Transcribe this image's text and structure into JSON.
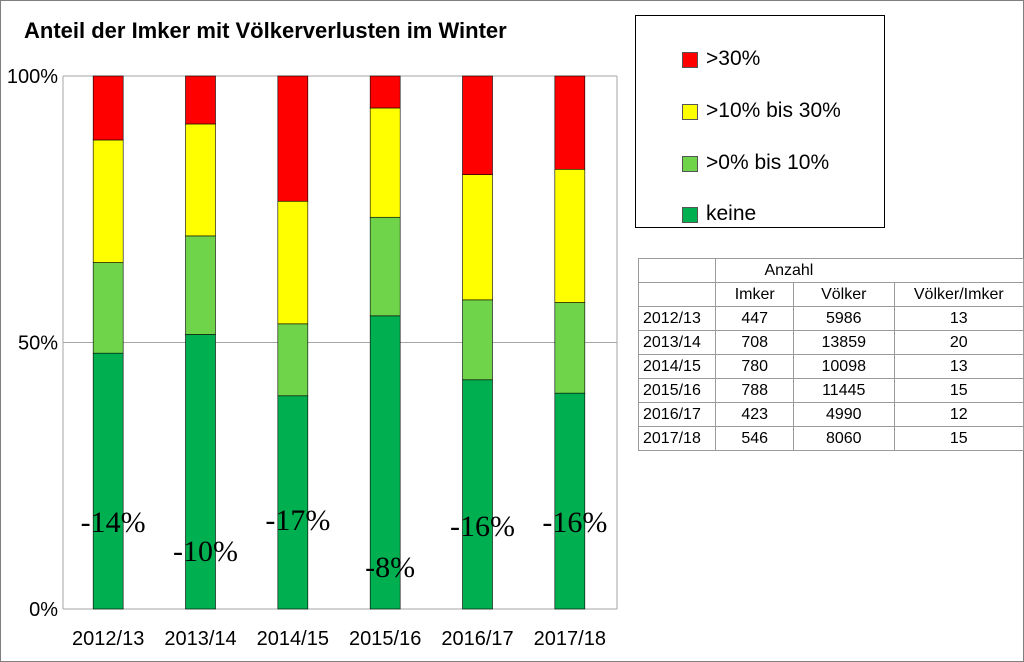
{
  "chart_data": {
    "type": "bar",
    "stacked": true,
    "title": "Anteil der Imker mit Völkerverlusten im Winter",
    "categories": [
      "2012/13",
      "2013/14",
      "2014/15",
      "2015/16",
      "2016/17",
      "2017/18"
    ],
    "series": [
      {
        "name": "keine",
        "color": "#00b050",
        "values": [
          48,
          51.5,
          40,
          55,
          43,
          40.5
        ]
      },
      {
        "name": ">0% bis 10%",
        "color": "#70d44b",
        "values": [
          17,
          18.5,
          13.5,
          18.5,
          15,
          17
        ]
      },
      {
        "name": ">10% bis 30%",
        "color": "#ffff00",
        "values": [
          23,
          21,
          23,
          20.5,
          23.5,
          25
        ]
      },
      {
        "name": ">30%",
        "color": "#ff0000",
        "values": [
          12,
          9,
          23.5,
          6,
          18.5,
          17.5
        ]
      }
    ],
    "annotations": [
      "-14%",
      "-10%",
      "-17%",
      "-8%",
      "-16%",
      "-16%"
    ],
    "yticks": [
      "0%",
      "50%",
      "100%"
    ],
    "ylim": [
      0,
      100
    ],
    "grid": true,
    "legend_position": "top-right"
  },
  "legend": [
    {
      "label": ">30%",
      "color": "#ff0000"
    },
    {
      "label": ">10% bis 30%",
      "color": "#ffff00"
    },
    {
      "label": ">0% bis 10%",
      "color": "#70d44b"
    },
    {
      "label": "keine",
      "color": "#00b050"
    }
  ],
  "table": {
    "group_header": "Anzahl",
    "headers": [
      "Imker",
      "Völker",
      "Völker/Imker"
    ],
    "rows": [
      [
        "2012/13",
        "447",
        "5986",
        "13"
      ],
      [
        "2013/14",
        "708",
        "13859",
        "20"
      ],
      [
        "2014/15",
        "780",
        "10098",
        "13"
      ],
      [
        "2015/16",
        "788",
        "11445",
        "15"
      ],
      [
        "2016/17",
        "423",
        "4990",
        "12"
      ],
      [
        "2017/18",
        "546",
        "8060",
        "15"
      ]
    ]
  }
}
